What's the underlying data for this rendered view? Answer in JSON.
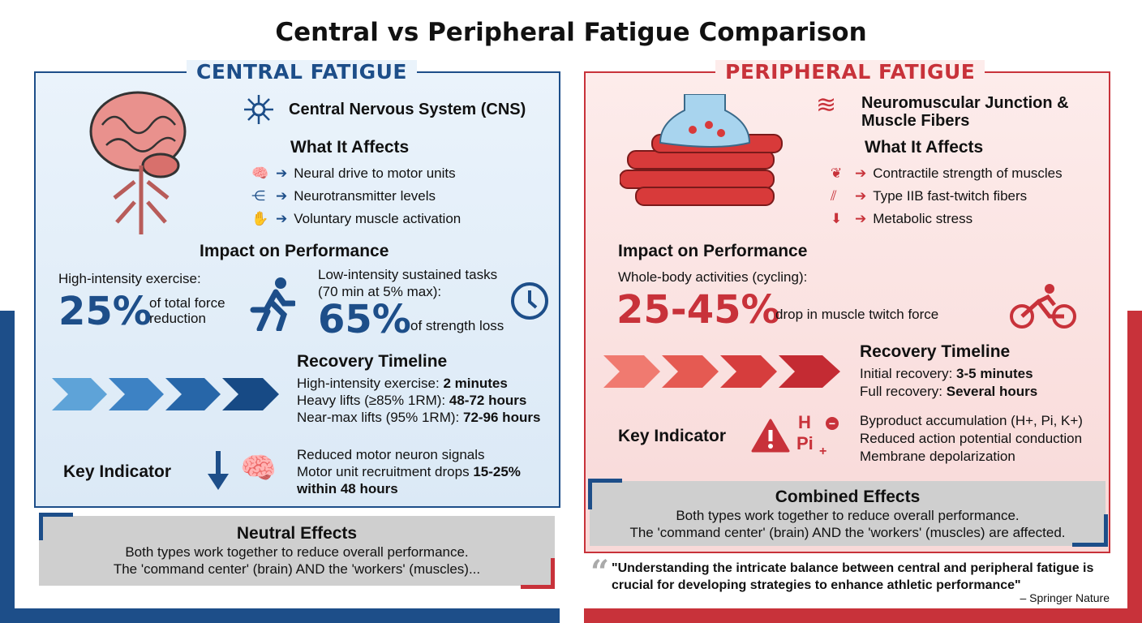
{
  "title": "Central vs Peripheral Fatigue Comparison",
  "colors": {
    "central": "#1d4e89",
    "peripheral": "#c8323a",
    "box": "#cfcfcf"
  },
  "central": {
    "header": "CENTRAL FATIGUE",
    "system": "Central Nervous System (CNS)",
    "affects_title": "What It Affects",
    "affects": [
      {
        "icon": "brain-icon",
        "text": "Neural drive to motor units"
      },
      {
        "icon": "network-icon",
        "text": "Neurotransmitter levels"
      },
      {
        "icon": "hand-icon",
        "text": "Voluntary muscle activation"
      }
    ],
    "impact_title": "Impact on Performance",
    "impact1": {
      "label": "High-intensity exercise:",
      "value": "25%",
      "desc1": "of total force",
      "desc2": "reduction"
    },
    "impact2": {
      "label1": "Low-intensity sustained tasks",
      "label2": "(70 min at 5% max):",
      "value": "65%",
      "desc": "of strength loss"
    },
    "recovery_title": "Recovery Timeline",
    "recovery": [
      {
        "label": "High-intensity exercise: ",
        "value": "2 minutes"
      },
      {
        "label": "Heavy lifts (≥85% 1RM): ",
        "value": "48-72 hours"
      },
      {
        "label": "Near-max lifts (95% 1RM): ",
        "value": "72-96 hours"
      }
    ],
    "key_title": "Key Indicator",
    "key1": "Reduced motor neuron signals",
    "key2a": "Motor unit recruitment drops ",
    "key2b": "15-25%",
    "key3": "within 48 hours",
    "box_title": "Neutral Effects",
    "box1": "Both types work together to reduce overall performance.",
    "box2": "The 'command center' (brain) AND the 'workers' (muscles)..."
  },
  "peripheral": {
    "header": "PERIPHERAL FATIGUE",
    "system1": "Neuromuscular Junction &",
    "system2": "Muscle Fibers",
    "affects_title": "What It Affects",
    "affects": [
      {
        "icon": "muscle-icon",
        "text": "Contractile strength of muscles"
      },
      {
        "icon": "fiber-icon",
        "text": "Type IIB fast-twitch fibers"
      },
      {
        "icon": "metabolic-icon",
        "text": "Metabolic stress"
      }
    ],
    "impact_title": "Impact on Performance",
    "impact_label": "Whole-body activities (cycling):",
    "value": "25-45%",
    "desc": "drop in muscle twitch force",
    "recovery_title": "Recovery Timeline",
    "recovery": [
      {
        "label": "Initial recovery: ",
        "value": "3-5 minutes"
      },
      {
        "label": "Full recovery: ",
        "value": "Several hours"
      }
    ],
    "key_title": "Key Indicator",
    "ions": {
      "h": "H",
      "pi": "Pi",
      "minus": "−",
      "plus": "+"
    },
    "keys": [
      "Byproduct accumulation (H+, Pi, K+)",
      "Reduced action potential conduction",
      "Membrane depolarization"
    ],
    "box_title": "Combined Effects",
    "box1": "Both types work together to reduce overall performance.",
    "box2": "The 'command center' (brain) AND the 'workers' (muscles) are affected."
  },
  "quote": {
    "mark": "“",
    "line1": "\"Understanding the intricate balance between central and peripheral fatigue is",
    "line2": "crucial for developing strategies to enhance athletic performance\"",
    "source": "– Springer Nature"
  }
}
